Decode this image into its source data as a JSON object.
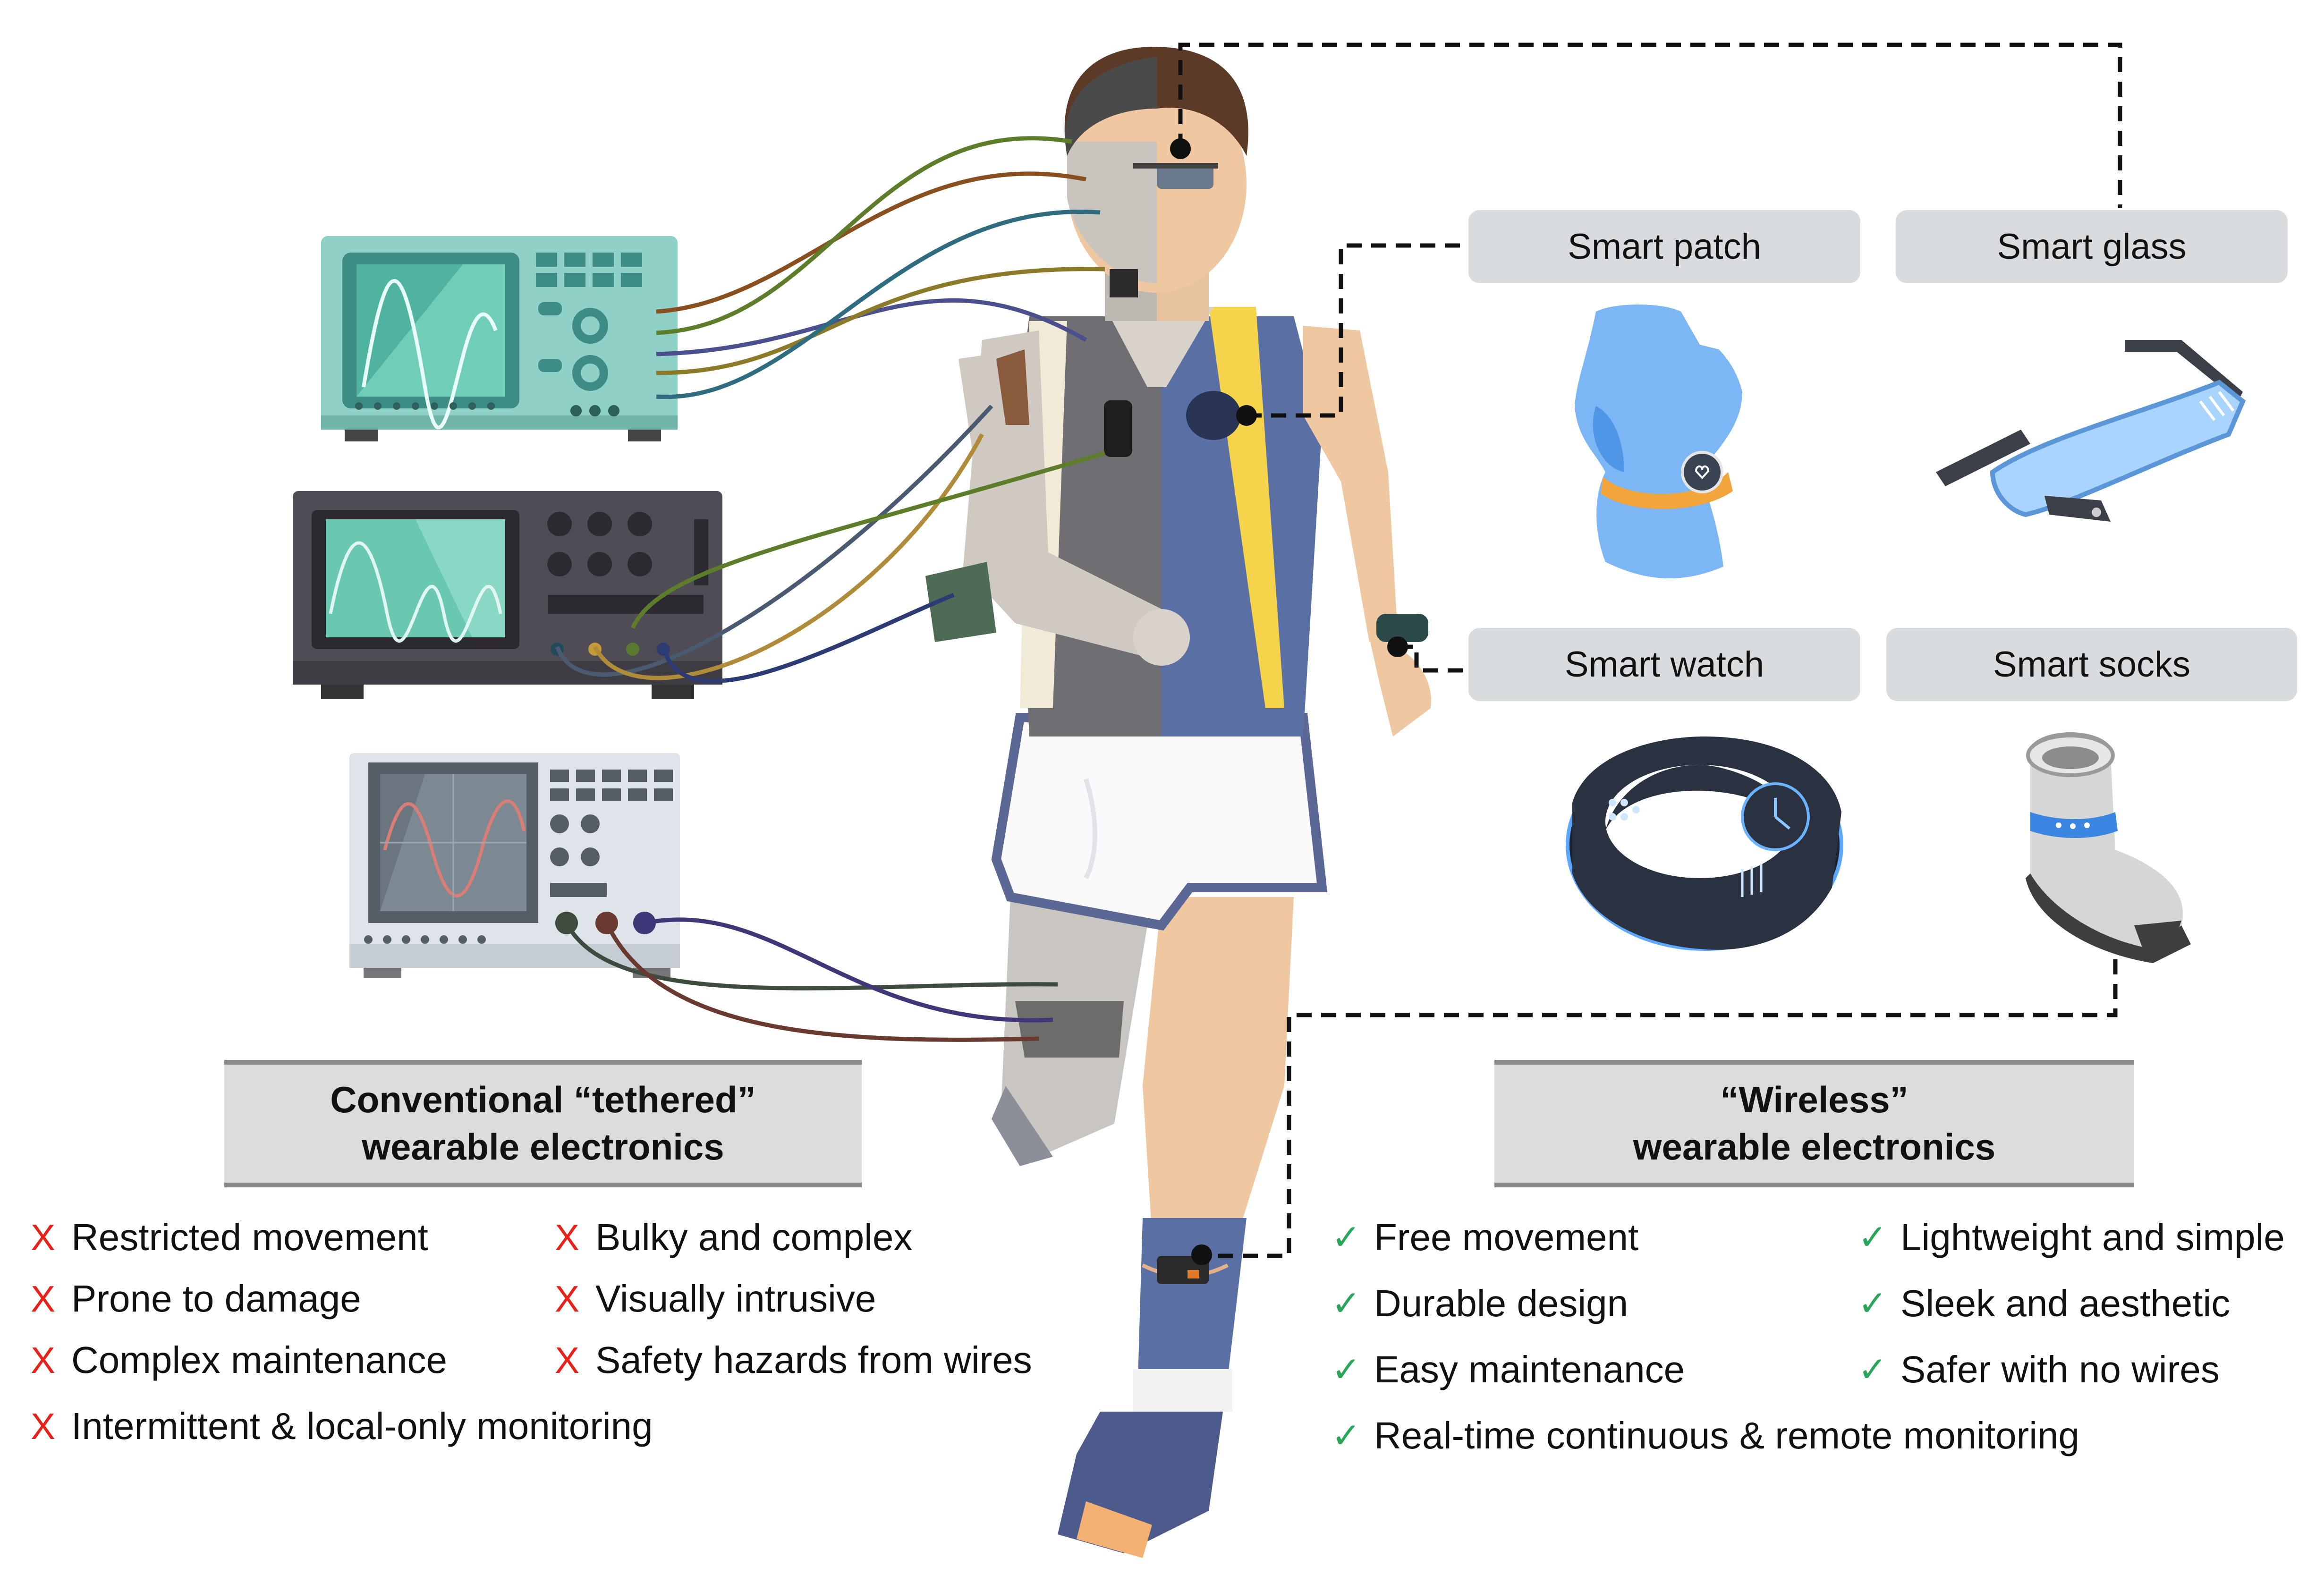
{
  "devices": {
    "patch": "Smart patch",
    "glass": "Smart glass",
    "watch": "Smart watch",
    "socks": "Smart socks"
  },
  "tethered": {
    "title_line1": "Conventional “tethered”",
    "title_line2": "wearable electronics",
    "mark": "X",
    "items": [
      "Restricted movement",
      "Prone to damage",
      "Complex maintenance",
      "Intermittent & local-only monitoring",
      "Bulky and complex",
      "Visually intrusive",
      "Safety hazards from wires"
    ]
  },
  "wireless": {
    "title_line1": "“Wireless”",
    "title_line2": "wearable electronics",
    "mark": "✓",
    "items": [
      "Free movement",
      "Durable design",
      "Easy maintenance",
      "Real-time continuous & remote monitoring",
      "Lightweight and simple",
      "Sleek and aesthetic",
      "Safer with no wires"
    ]
  },
  "colors": {
    "cross": "#e8221b",
    "check": "#2aa65a",
    "label_bg": "#d9dcdf",
    "shirt_left": "#6f6f73",
    "shirt_right": "#5a6fa3",
    "skin": "#efc8a2"
  }
}
